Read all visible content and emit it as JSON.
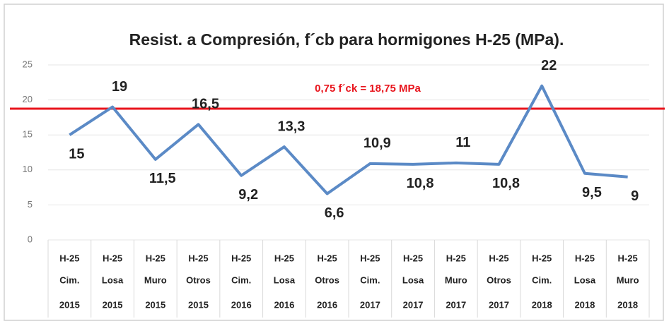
{
  "chart_data": {
    "type": "line",
    "title": "Resist. a Compresión, f´cb para hormigones H-25 (MPa).",
    "categories": [
      [
        "H-25",
        "Cim.",
        "2015"
      ],
      [
        "H-25",
        "Losa",
        "2015"
      ],
      [
        "H-25",
        "Muro",
        "2015"
      ],
      [
        "H-25",
        "Otros",
        "2015"
      ],
      [
        "H-25",
        "Cim.",
        "2016"
      ],
      [
        "H-25",
        "Losa",
        "2016"
      ],
      [
        "H-25",
        "Otros",
        "2016"
      ],
      [
        "H-25",
        "Cim.",
        "2017"
      ],
      [
        "H-25",
        "Losa",
        "2017"
      ],
      [
        "H-25",
        "Muro",
        "2017"
      ],
      [
        "H-25",
        "Otros",
        "2017"
      ],
      [
        "H-25",
        "Cim.",
        "2018"
      ],
      [
        "H-25",
        "Losa",
        "2018"
      ],
      [
        "H-25",
        "Muro",
        "2018"
      ]
    ],
    "series": [
      {
        "color": "#5b8ac6",
        "values": [
          15,
          19,
          11.5,
          16.5,
          9.2,
          13.3,
          6.6,
          10.9,
          10.8,
          11,
          10.8,
          22,
          9.5,
          9
        ],
        "value_labels": [
          "15",
          "19",
          "11,5",
          "16,5",
          "9,2",
          "13,3",
          "6,6",
          "10,9",
          "10,8",
          "11",
          "10,8",
          "22",
          "9,5",
          "9"
        ]
      }
    ],
    "reference_line": {
      "value": 18.75,
      "label": "0,75 f´ck = 18,75 MPa",
      "color": "#e8141c"
    },
    "ylim": [
      0,
      25
    ],
    "yticks": [
      0,
      5,
      10,
      15,
      20,
      25
    ],
    "grid": true
  }
}
